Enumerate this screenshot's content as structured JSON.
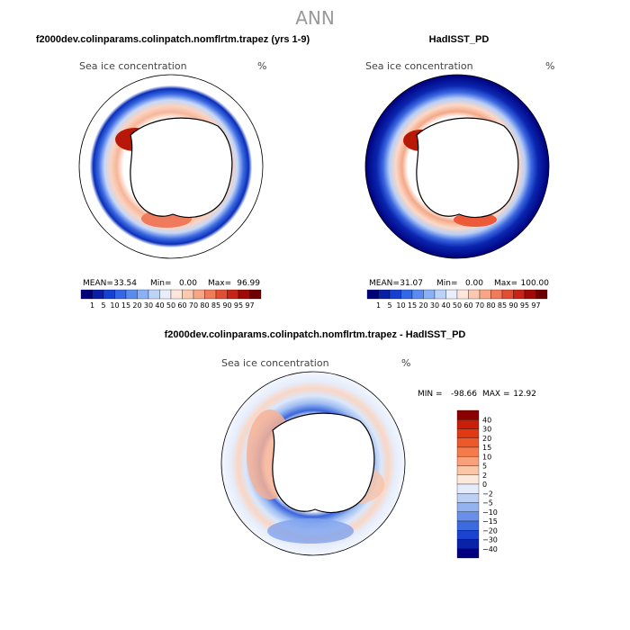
{
  "figure_title": "ANN",
  "chart_data": [
    {
      "type": "heatmap",
      "panel": "model",
      "title": "f2000dev.colinparams.colinpatch.nomflrtm.trapez (yrs 1-9)",
      "variable_label": "Sea ice concentration",
      "unit": "%",
      "stats": {
        "mean_label": "MEAN=",
        "mean": "33.54",
        "min_label": "Min=",
        "min": "0.00",
        "max_label": "Max=",
        "max": "96.99"
      },
      "colorbar": {
        "levels": [
          "1",
          "5",
          "10",
          "15",
          "20",
          "30",
          "40",
          "50",
          "60",
          "70",
          "80",
          "85",
          "90",
          "95",
          "97"
        ],
        "colors": [
          "#00007a",
          "#0a1fa8",
          "#1640d0",
          "#3566e6",
          "#5a8cf0",
          "#8ab0f5",
          "#bcd3f8",
          "#e8eefc",
          "#fde6dc",
          "#fcc8b0",
          "#f8a486",
          "#f07a5c",
          "#e04e34",
          "#c82416",
          "#a00a06",
          "#6e0000"
        ]
      }
    },
    {
      "type": "heatmap",
      "panel": "observations",
      "title": "HadISST_PD",
      "variable_label": "Sea ice concentration",
      "unit": "%",
      "stats": {
        "mean_label": "MEAN=",
        "mean": "31.07",
        "min_label": "Min=",
        "min": "0.00",
        "max_label": "Max=",
        "max": "100.00"
      },
      "colorbar": {
        "levels": [
          "1",
          "5",
          "10",
          "15",
          "20",
          "30",
          "40",
          "50",
          "60",
          "70",
          "80",
          "85",
          "90",
          "95",
          "97"
        ],
        "colors": [
          "#00007a",
          "#0a1fa8",
          "#1640d0",
          "#3566e6",
          "#5a8cf0",
          "#8ab0f5",
          "#bcd3f8",
          "#e8eefc",
          "#fde6dc",
          "#fcc8b0",
          "#f8a486",
          "#f07a5c",
          "#e04e34",
          "#c82416",
          "#a00a06",
          "#6e0000"
        ]
      }
    },
    {
      "type": "heatmap",
      "panel": "difference",
      "title": "f2000dev.colinparams.colinpatch.nomflrtm.trapez - HadISST_PD",
      "variable_label": "Sea ice concentration",
      "unit": "%",
      "stats": {
        "min_label": "MIN =",
        "min": "-98.66",
        "max_label": "MAX =",
        "max": "12.92"
      },
      "colorbar": {
        "levels": [
          "40",
          "30",
          "20",
          "15",
          "10",
          "5",
          "2",
          "0",
          "−2",
          "−5",
          "−10",
          "−15",
          "−20",
          "−30",
          "−40"
        ],
        "colors": [
          "#8b0000",
          "#c81e0a",
          "#e03a14",
          "#ec5a2a",
          "#f47c4c",
          "#f8a07a",
          "#fbc6a8",
          "#fde8dc",
          "#e4ecfb",
          "#bcd0f5",
          "#92b2f0",
          "#6890ea",
          "#3e6ae0",
          "#1a44d0",
          "#0a22a8",
          "#000080"
        ]
      }
    }
  ]
}
